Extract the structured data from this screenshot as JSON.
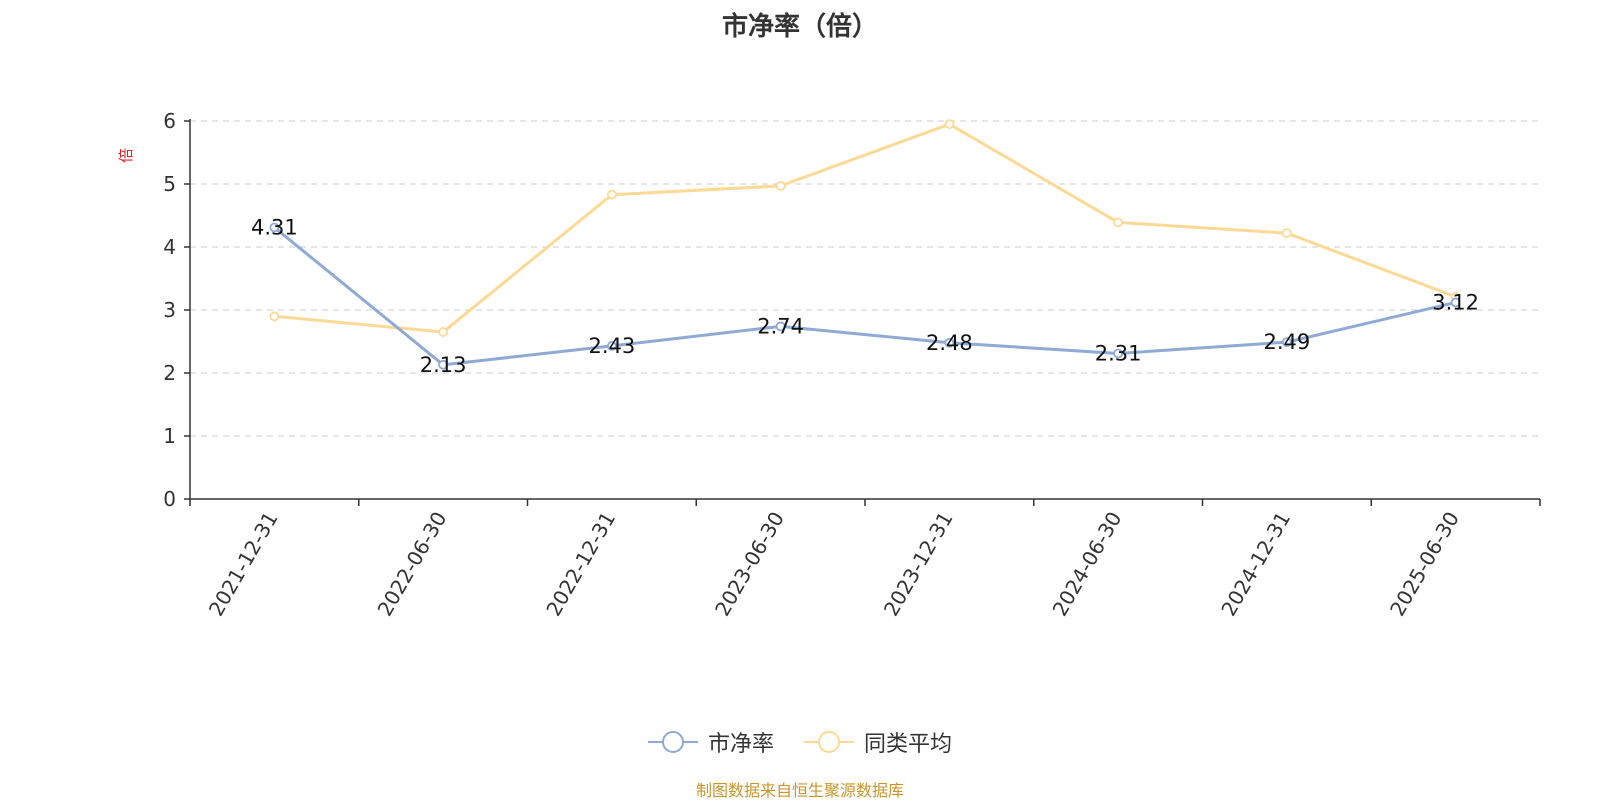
{
  "chart_data": {
    "type": "line",
    "title": "市净率（倍）",
    "ylabel": "倍",
    "xlabel": "",
    "categories": [
      "2021-12-31",
      "2022-06-30",
      "2022-12-31",
      "2023-06-30",
      "2023-12-31",
      "2024-06-30",
      "2024-12-31",
      "2025-06-30"
    ],
    "ylim": [
      0,
      6
    ],
    "yticks": [
      "0",
      "1",
      "2",
      "3",
      "4",
      "5",
      "6"
    ],
    "grid": true,
    "legend_position": "bottom",
    "series": [
      {
        "name": "市净率",
        "color": "#8eaad5",
        "values": [
          4.31,
          2.13,
          2.43,
          2.74,
          2.48,
          2.31,
          2.49,
          3.12
        ],
        "labels": [
          "4.31",
          "2.13",
          "2.43",
          "2.74",
          "2.48",
          "2.31",
          "2.49",
          "3.12"
        ]
      },
      {
        "name": "同类平均",
        "color": "#fdd996",
        "values": [
          2.9,
          2.65,
          4.83,
          4.97,
          5.95,
          4.39,
          4.22,
          3.21
        ]
      }
    ]
  },
  "footer": {
    "source": "制图数据来自恒生聚源数据库"
  }
}
